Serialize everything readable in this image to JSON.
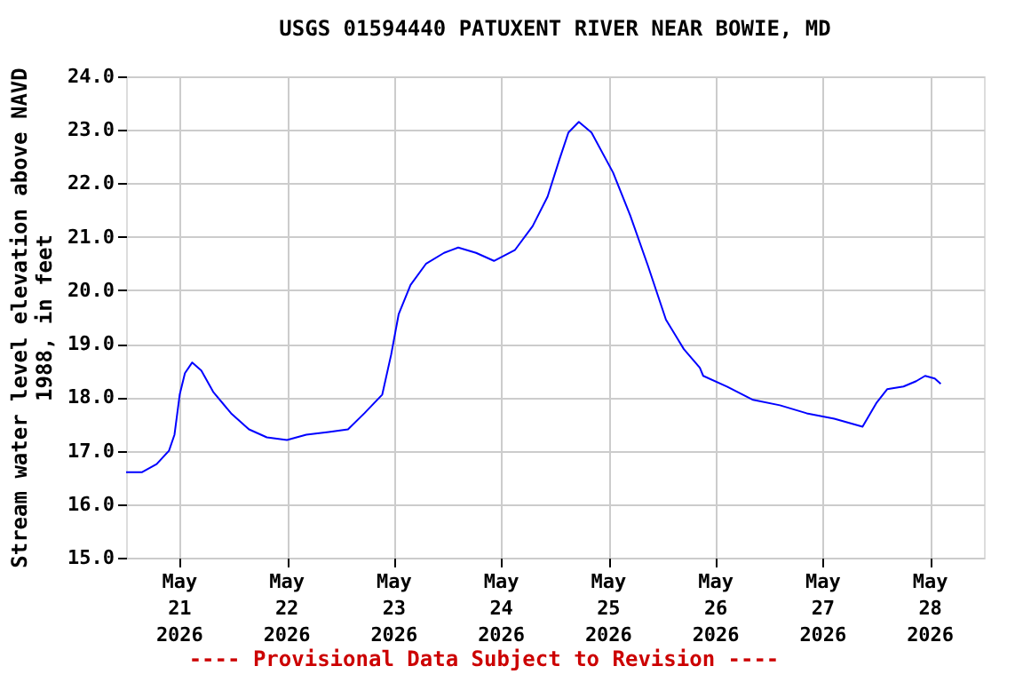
{
  "chart_data": {
    "type": "line",
    "title": "USGS 01594440 PATUXENT RIVER NEAR BOWIE, MD",
    "ylabel": "Stream water level elevation above NAVD 1988, in feet",
    "annotations": [
      "---- Provisional Data Subject to Revision ----"
    ],
    "series": [
      {
        "color": "#0000ff",
        "x": [
          "2026-05-20T12:00",
          "2026-05-20T15:36",
          "2026-05-20T18:50",
          "2026-05-20T21:36",
          "2026-05-20T22:50",
          "2026-05-21T00:00",
          "2026-05-21T01:10",
          "2026-05-21T02:48",
          "2026-05-21T04:50",
          "2026-05-21T07:30",
          "2026-05-21T11:30",
          "2026-05-21T15:30",
          "2026-05-21T19:30",
          "2026-05-22T00:00",
          "2026-05-22T04:20",
          "2026-05-22T09:20",
          "2026-05-22T13:40",
          "2026-05-22T17:20",
          "2026-05-22T21:20",
          "2026-05-22T23:20",
          "2026-05-23T01:00",
          "2026-05-23T03:40",
          "2026-05-23T07:10",
          "2026-05-23T11:10",
          "2026-05-23T14:20",
          "2026-05-23T18:20",
          "2026-05-23T22:20",
          "2026-05-24T03:00",
          "2026-05-24T07:00",
          "2026-05-24T10:20",
          "2026-05-24T13:00",
          "2026-05-24T15:00",
          "2026-05-24T17:20",
          "2026-05-24T20:10",
          "2026-05-25T01:00",
          "2026-05-25T04:50",
          "2026-05-25T08:50",
          "2026-05-25T12:50",
          "2026-05-25T16:50",
          "2026-05-25T20:25",
          "2026-05-25T21:10",
          "2026-05-26T02:30",
          "2026-05-26T08:20",
          "2026-05-26T14:20",
          "2026-05-26T20:20",
          "2026-05-27T02:30",
          "2026-05-27T08:50",
          "2026-05-27T12:00",
          "2026-05-27T14:20",
          "2026-05-27T18:00",
          "2026-05-27T20:50",
          "2026-05-27T22:50",
          "2026-05-28T01:00",
          "2026-05-28T02:20"
        ],
        "values": [
          16.6,
          16.6,
          16.75,
          17.0,
          17.3,
          18.05,
          18.45,
          18.65,
          18.5,
          18.1,
          17.7,
          17.4,
          17.25,
          17.2,
          17.3,
          17.35,
          17.4,
          17.7,
          18.05,
          18.8,
          19.55,
          20.1,
          20.5,
          20.7,
          20.8,
          20.7,
          20.55,
          20.75,
          21.2,
          21.75,
          22.45,
          22.95,
          23.15,
          22.95,
          22.2,
          21.4,
          20.45,
          19.45,
          18.9,
          18.55,
          18.4,
          18.2,
          17.95,
          17.85,
          17.7,
          17.6,
          17.45,
          17.9,
          18.15,
          18.2,
          18.3,
          18.4,
          18.35,
          18.25
        ]
      }
    ],
    "xlim": [
      "2026-05-20T12:00",
      "2026-05-28T12:00"
    ],
    "xticks": [
      {
        "value": "2026-05-21",
        "label": "May 21 2026"
      },
      {
        "value": "2026-05-22",
        "label": "May 22 2026"
      },
      {
        "value": "2026-05-23",
        "label": "May 23 2026"
      },
      {
        "value": "2026-05-24",
        "label": "May 24 2026"
      },
      {
        "value": "2026-05-25",
        "label": "May 25 2026"
      },
      {
        "value": "2026-05-26",
        "label": "May 26 2026"
      },
      {
        "value": "2026-05-27",
        "label": "May 27 2026"
      },
      {
        "value": "2026-05-28",
        "label": "May 28 2026"
      }
    ],
    "ylim": [
      15,
      24
    ],
    "yticks": [
      {
        "value": 15,
        "label": "15.0"
      },
      {
        "value": 16,
        "label": "16.0"
      },
      {
        "value": 17,
        "label": "17.0"
      },
      {
        "value": 18,
        "label": "18.0"
      },
      {
        "value": 19,
        "label": "19.0"
      },
      {
        "value": 20,
        "label": "20.0"
      },
      {
        "value": 21,
        "label": "21.0"
      },
      {
        "value": 22,
        "label": "22.0"
      },
      {
        "value": 23,
        "label": "23.0"
      },
      {
        "value": 24,
        "label": "24.0"
      }
    ],
    "grid": true,
    "marker": "none",
    "line_style": "solid"
  }
}
